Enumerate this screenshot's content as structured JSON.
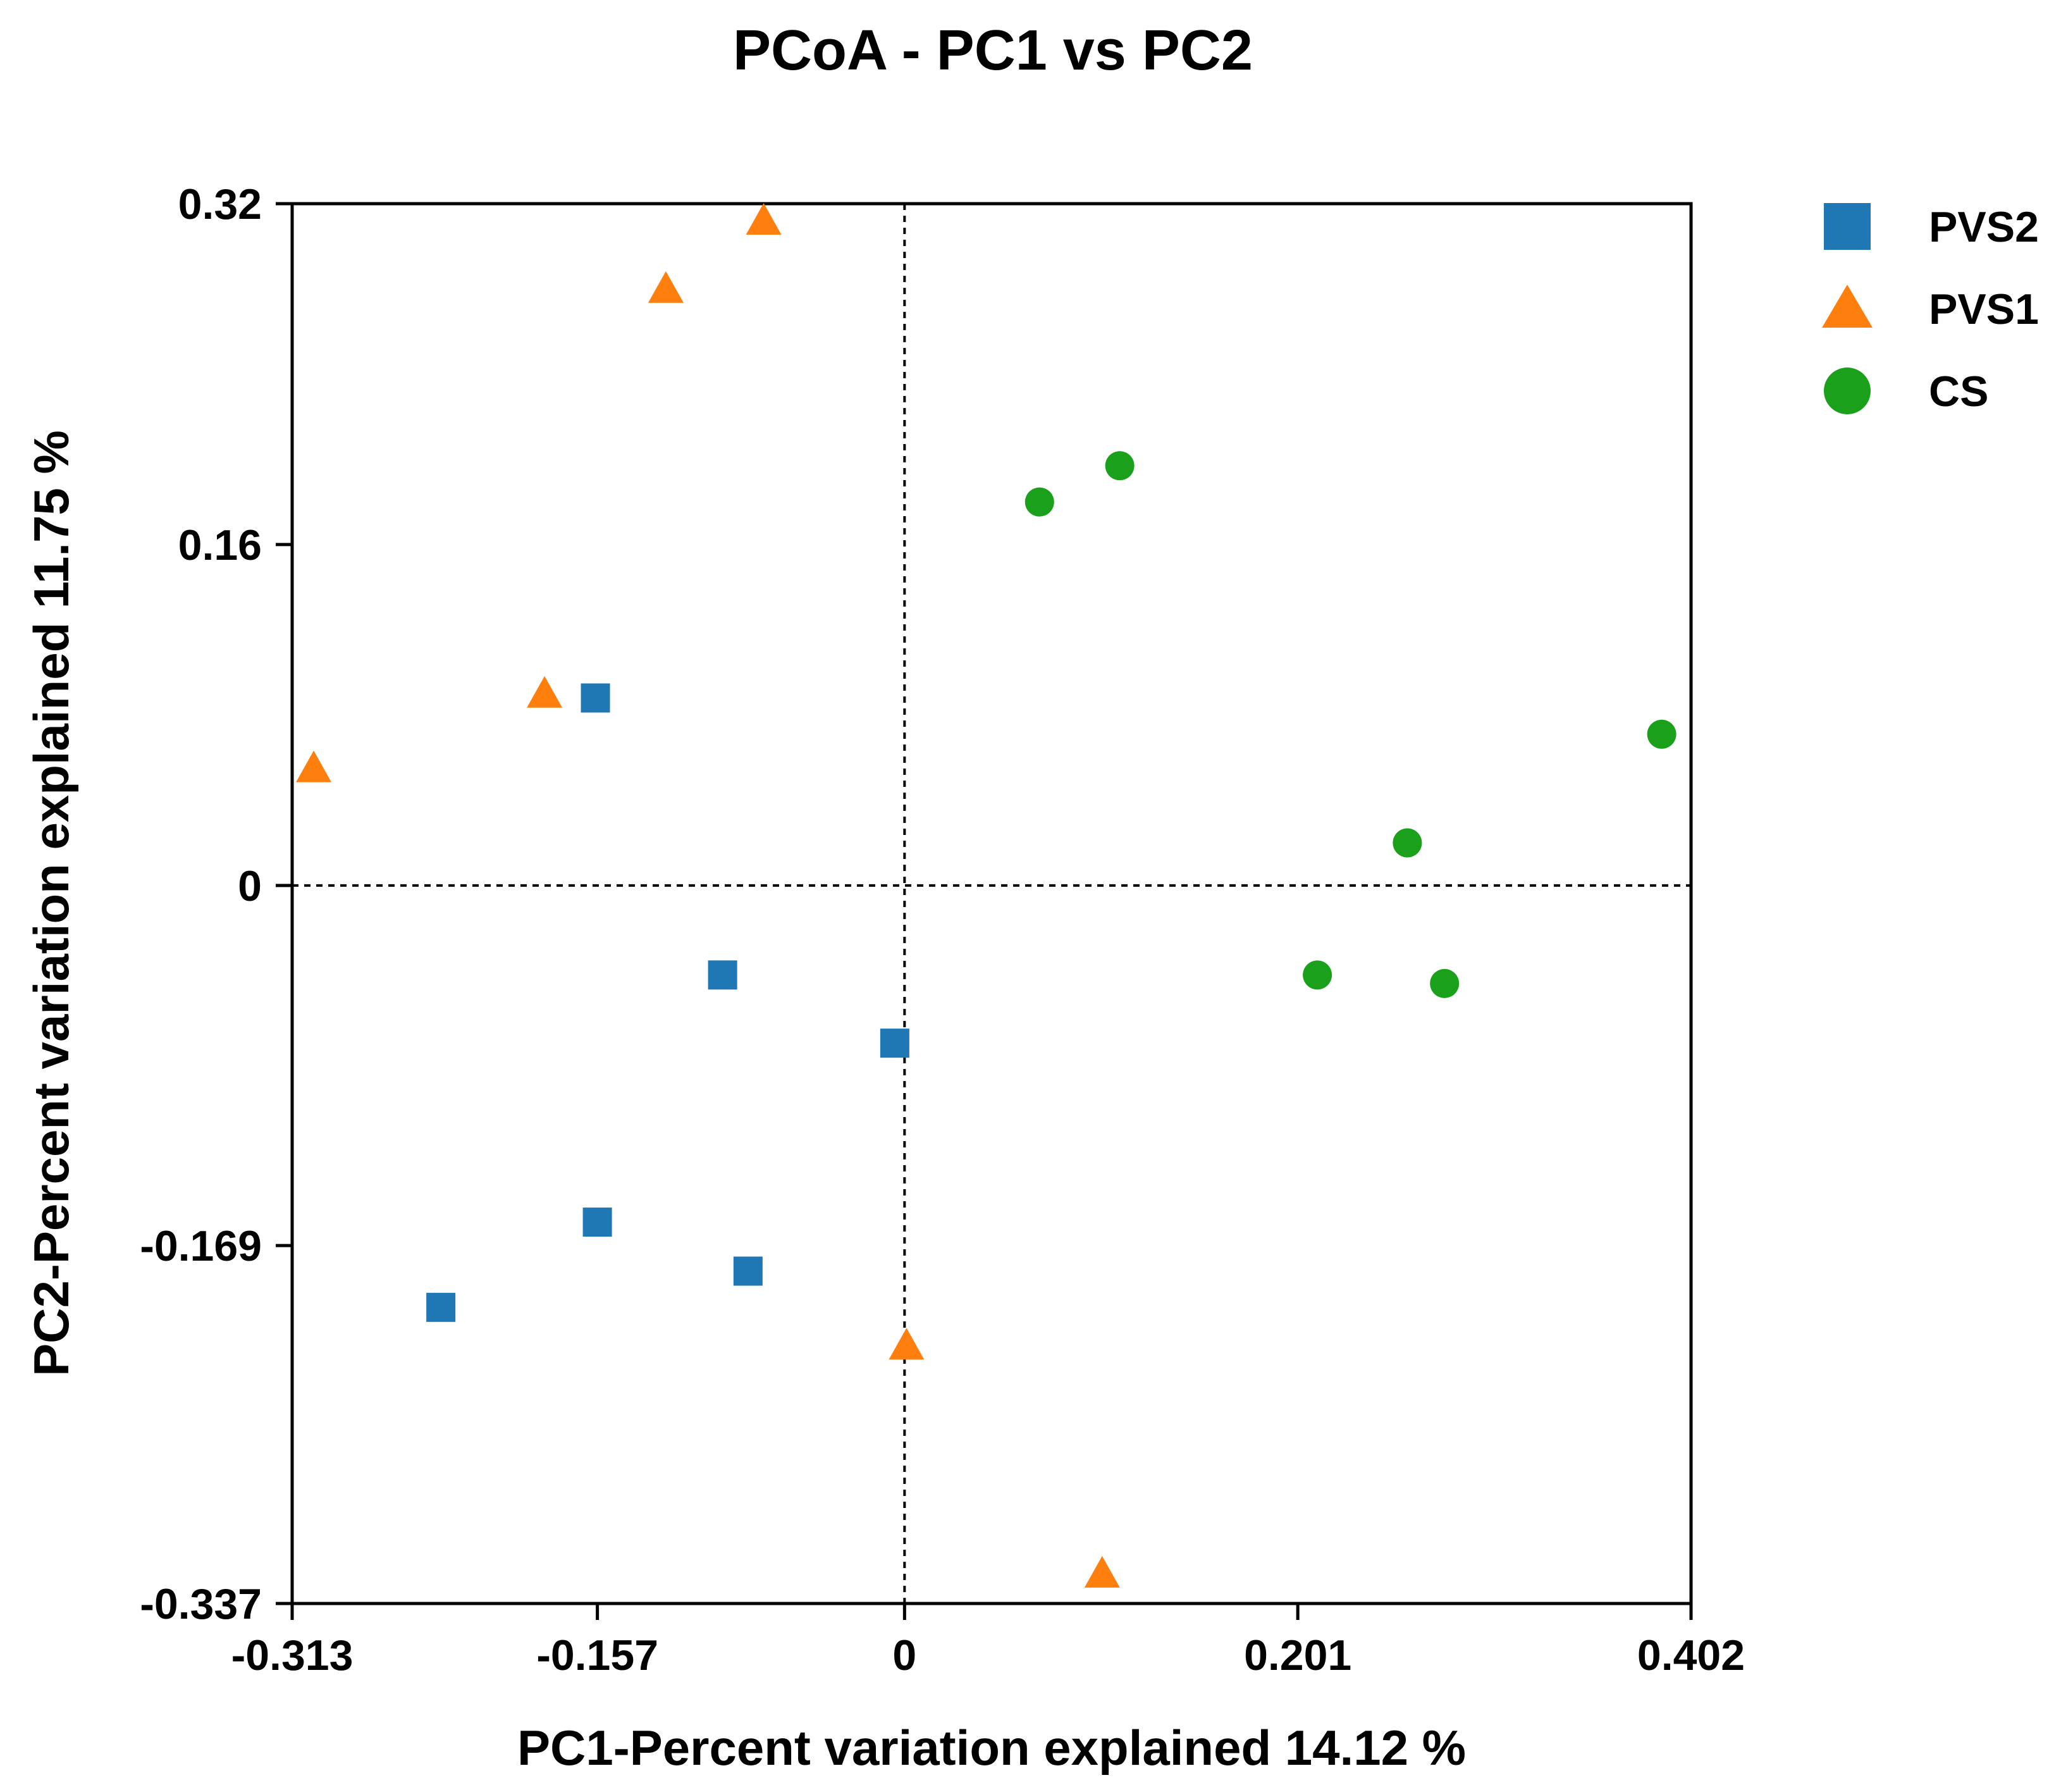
{
  "chart_data": {
    "type": "scatter",
    "title": "PCoA - PC1 vs PC2",
    "xlabel": "PC1-Percent variation explained 14.12 %",
    "ylabel": "PC2-Percent variation explained 11.75 %",
    "xlim": [
      -0.313,
      0.402
    ],
    "ylim": [
      -0.337,
      0.32
    ],
    "xticks": [
      -0.313,
      -0.157,
      0,
      0.201,
      0.402
    ],
    "xtick_labels": [
      "-0.313",
      "-0.157",
      "0",
      "0.201",
      "0.402"
    ],
    "yticks": [
      0.32,
      0.16,
      0,
      -0.169,
      -0.337
    ],
    "ytick_labels": [
      "0.32",
      "0.16",
      "0",
      "-0.169",
      "-0.337"
    ],
    "grid": false,
    "reference_lines": {
      "x": 0,
      "y": 0,
      "style": "dotted"
    },
    "legend_position": "right",
    "series": [
      {
        "name": "PVS2",
        "marker": "square",
        "color": "#1f77b4",
        "points": [
          {
            "x": -0.158,
            "y": 0.088
          },
          {
            "x": -0.093,
            "y": -0.042
          },
          {
            "x": -0.005,
            "y": -0.074
          },
          {
            "x": -0.157,
            "y": -0.158
          },
          {
            "x": -0.08,
            "y": -0.181
          },
          {
            "x": -0.237,
            "y": -0.198
          }
        ]
      },
      {
        "name": "PVS1",
        "marker": "triangle",
        "color": "#ff7f0e",
        "points": [
          {
            "x": -0.072,
            "y": 0.312
          },
          {
            "x": -0.122,
            "y": 0.28
          },
          {
            "x": -0.184,
            "y": 0.09
          },
          {
            "x": -0.302,
            "y": 0.055
          },
          {
            "x": 0.001,
            "y": -0.216
          },
          {
            "x": 0.101,
            "y": -0.323
          }
        ]
      },
      {
        "name": "CS",
        "marker": "circle",
        "color": "#1aa01a",
        "points": [
          {
            "x": 0.11,
            "y": 0.197
          },
          {
            "x": 0.069,
            "y": 0.18
          },
          {
            "x": 0.387,
            "y": 0.071
          },
          {
            "x": 0.257,
            "y": 0.02
          },
          {
            "x": 0.211,
            "y": -0.042
          },
          {
            "x": 0.276,
            "y": -0.046
          }
        ]
      }
    ]
  }
}
